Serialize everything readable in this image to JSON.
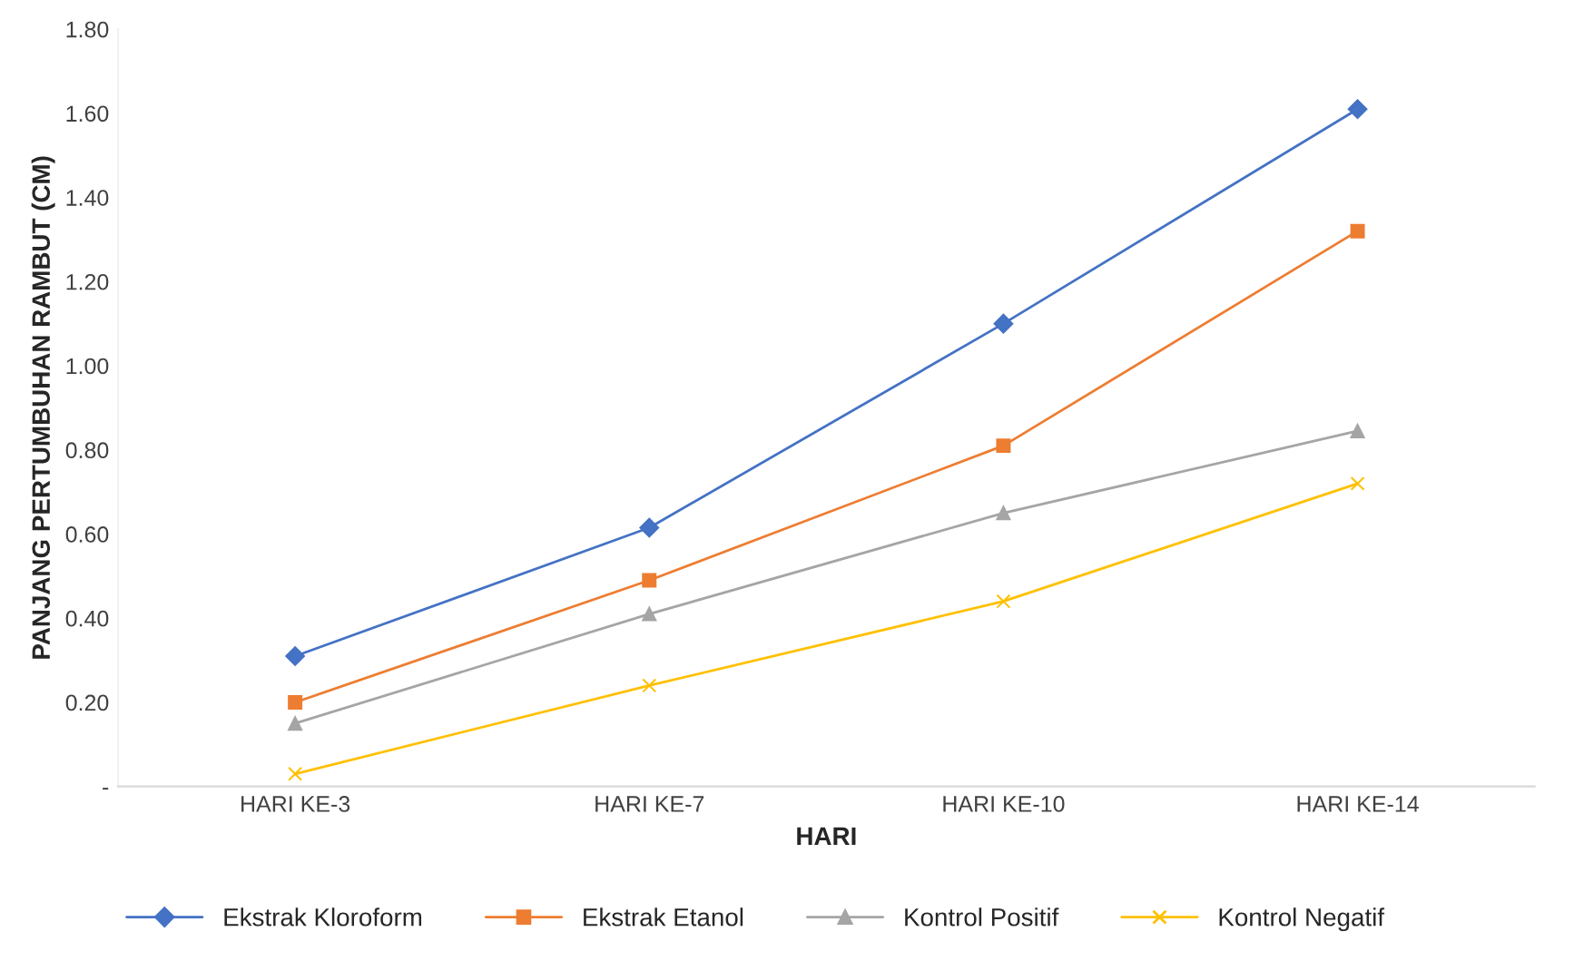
{
  "chart_data": {
    "type": "line",
    "xlabel": "HARI",
    "ylabel": "PANJANG PERTUMBUHAN RAMBUT (CM)",
    "categories": [
      "HARI KE-3",
      "HARI KE-7",
      "HARI KE-10",
      "HARI KE-14"
    ],
    "series": [
      {
        "name": "Ekstrak Kloroform",
        "color": "#4472c4",
        "marker": "diamond",
        "values": [
          0.31,
          0.615,
          1.1,
          1.61
        ]
      },
      {
        "name": "Ekstrak Etanol",
        "color": "#ed7d31",
        "marker": "square",
        "values": [
          0.2,
          0.49,
          0.81,
          1.32
        ]
      },
      {
        "name": "Kontrol Positif",
        "color": "#a5a5a5",
        "marker": "triangle",
        "values": [
          0.15,
          0.41,
          0.65,
          0.845
        ]
      },
      {
        "name": "Kontrol Negatif",
        "color": "#ffc000",
        "marker": "cross",
        "values": [
          0.03,
          0.24,
          0.44,
          0.72
        ]
      }
    ],
    "ylim": [
      0,
      1.8
    ],
    "yticks": [
      {
        "value": 0,
        "label": "-"
      },
      {
        "value": 0.2,
        "label": "0.20"
      },
      {
        "value": 0.4,
        "label": "0.40"
      },
      {
        "value": 0.6,
        "label": "0.60"
      },
      {
        "value": 0.8,
        "label": "0.80"
      },
      {
        "value": 1.0,
        "label": "1.00"
      },
      {
        "value": 1.2,
        "label": "1.20"
      },
      {
        "value": 1.4,
        "label": "1.40"
      },
      {
        "value": 1.6,
        "label": "1.60"
      },
      {
        "value": 1.8,
        "label": "1.80"
      }
    ],
    "grid": false,
    "legend": "bottom",
    "line_style": "solid"
  }
}
